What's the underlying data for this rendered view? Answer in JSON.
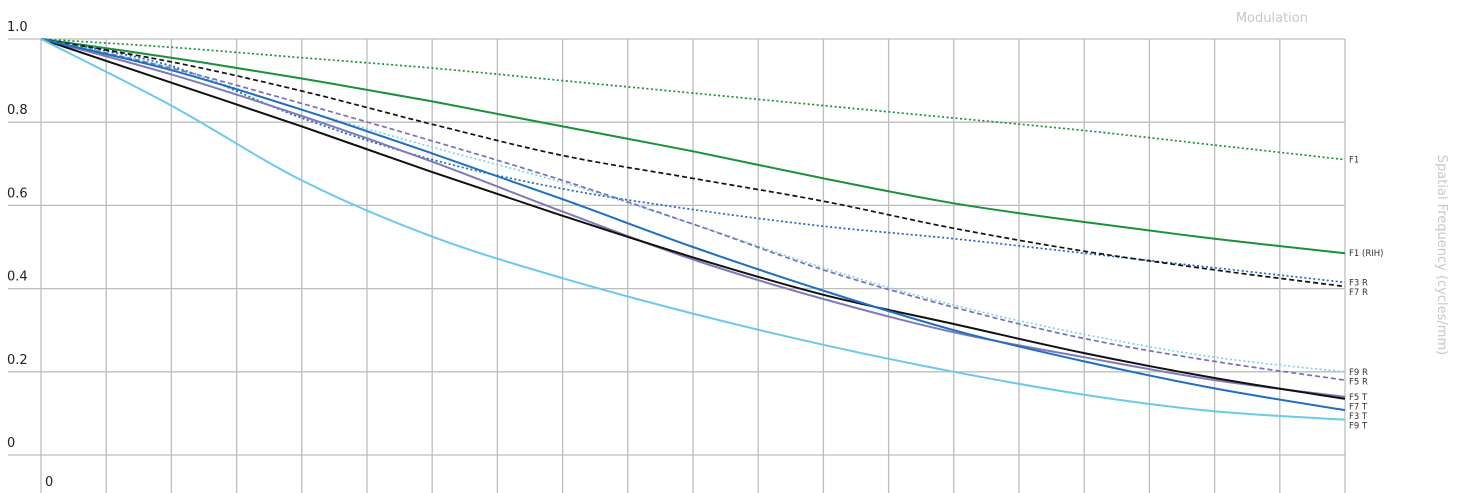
{
  "chart_data": {
    "type": "line",
    "title": "",
    "xlabel": "Spatial Frequency (cycles/mm)",
    "ylabel": "Modulation",
    "x_ticks": [
      "0"
    ],
    "y_ticks": [
      "1.0",
      "0.8",
      "0.6",
      "0.4",
      "0.2",
      "0"
    ],
    "x": [
      0,
      5,
      10,
      15,
      20,
      25,
      30,
      35,
      40,
      45,
      50
    ],
    "xlim": [
      0,
      50
    ],
    "ylim": [
      0,
      1.0
    ],
    "grid": true,
    "series": [
      {
        "name": "F1",
        "color": "#1a8f3c",
        "dash": "dotted",
        "values": [
          1.0,
          0.98,
          0.955,
          0.93,
          0.9,
          0.87,
          0.84,
          0.81,
          0.78,
          0.745,
          0.71
        ]
      },
      {
        "name": "F1 (RIH)",
        "color": "#1a8f3c",
        "dash": "solid",
        "values": [
          1.0,
          0.955,
          0.905,
          0.85,
          0.79,
          0.73,
          0.665,
          0.605,
          0.56,
          0.52,
          0.485
        ]
      },
      {
        "name": "F3 R",
        "color": "#1e66b8",
        "dash": "dotted",
        "values": [
          1.0,
          0.935,
          0.81,
          0.71,
          0.64,
          0.59,
          0.55,
          0.52,
          0.485,
          0.45,
          0.415
        ]
      },
      {
        "name": "F7 R",
        "color": "#111111",
        "dash": "dashed",
        "values": [
          1.0,
          0.945,
          0.875,
          0.795,
          0.72,
          0.665,
          0.61,
          0.545,
          0.49,
          0.445,
          0.405
        ]
      },
      {
        "name": "F9 R",
        "color": "#7fd2ee",
        "dash": "dotted",
        "values": [
          1.0,
          0.93,
          0.83,
          0.74,
          0.655,
          0.555,
          0.45,
          0.36,
          0.29,
          0.235,
          0.2
        ]
      },
      {
        "name": "F5 R",
        "color": "#7b6fb8",
        "dash": "dashed",
        "values": [
          1.0,
          0.93,
          0.845,
          0.755,
          0.66,
          0.555,
          0.445,
          0.355,
          0.28,
          0.225,
          0.18
        ]
      },
      {
        "name": "F5 T",
        "color": "#7f7ab8",
        "dash": "solid",
        "values": [
          1.0,
          0.915,
          0.815,
          0.705,
          0.585,
          0.47,
          0.375,
          0.295,
          0.235,
          0.18,
          0.14
        ]
      },
      {
        "name": "F7 T",
        "color": "#111111",
        "dash": "solid",
        "values": [
          1.0,
          0.895,
          0.79,
          0.68,
          0.575,
          0.475,
          0.385,
          0.315,
          0.245,
          0.185,
          0.135
        ]
      },
      {
        "name": "F3 T",
        "color": "#1f6fc0",
        "dash": "solid",
        "values": [
          1.0,
          0.925,
          0.83,
          0.725,
          0.615,
          0.5,
          0.395,
          0.3,
          0.225,
          0.16,
          0.108
        ]
      },
      {
        "name": "F9 T",
        "color": "#6cc8ec",
        "dash": "solid",
        "values": [
          1.0,
          0.84,
          0.66,
          0.525,
          0.425,
          0.34,
          0.265,
          0.2,
          0.145,
          0.105,
          0.085
        ]
      }
    ]
  }
}
